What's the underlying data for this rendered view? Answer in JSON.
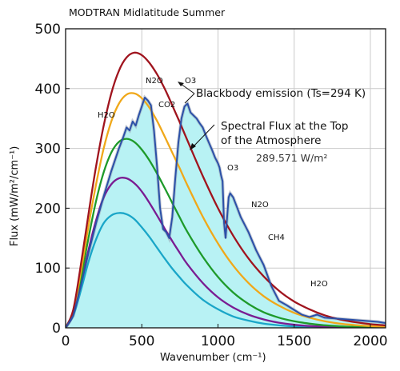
{
  "chart_data": {
    "type": "line",
    "title": "MODTRAN Midlatitude Summer",
    "xlabel": "Wavenumber (cm⁻¹)",
    "ylabel": "Flux (mW/m²/cm⁻¹)",
    "xlim": [
      0,
      2100
    ],
    "ylim": [
      0,
      500
    ],
    "xticks": [
      0,
      500,
      1000,
      1500,
      2000
    ],
    "yticks": [
      0,
      100,
      200,
      300,
      400,
      500
    ],
    "grid": true,
    "colors": {
      "bb294": "#a0141e",
      "bb270": "#f0a81a",
      "bb250": "#1e9a2a",
      "bb230": "#7a1c92",
      "bb210": "#1aa6c8",
      "spectrum": "#2b50a8",
      "fill": "#b8f2f4"
    },
    "series": [
      {
        "key": "bb294",
        "x": [
          0,
          50,
          100,
          150,
          200,
          250,
          300,
          350,
          400,
          450,
          500,
          550,
          600,
          650,
          700,
          750,
          800,
          900,
          1000,
          1100,
          1200,
          1300,
          1400,
          1500,
          1600,
          1700,
          1800,
          1900,
          2000,
          2100
        ],
        "values": [
          0,
          30,
          105,
          190,
          270,
          338,
          392,
          430,
          452,
          460,
          456,
          443,
          424,
          400,
          372,
          343,
          313,
          254,
          200,
          154,
          116,
          86,
          62,
          44,
          31,
          21,
          14,
          9.5,
          6.2,
          4.0
        ]
      },
      {
        "key": "bb270",
        "x": [
          0,
          50,
          100,
          150,
          200,
          250,
          300,
          350,
          400,
          450,
          500,
          550,
          600,
          650,
          700,
          750,
          800,
          900,
          1000,
          1100,
          1200,
          1300,
          1400,
          1500,
          1600,
          1700,
          1800,
          1900,
          2000,
          2100
        ],
        "values": [
          0,
          27,
          93,
          170,
          240,
          300,
          345,
          375,
          390,
          392,
          384,
          368,
          346,
          320,
          293,
          266,
          238,
          186,
          141,
          104,
          75,
          53,
          37,
          25,
          17,
          11,
          7,
          4.5,
          2.9,
          1.8
        ]
      },
      {
        "key": "bb250",
        "x": [
          0,
          50,
          100,
          150,
          200,
          250,
          300,
          350,
          400,
          450,
          500,
          550,
          600,
          650,
          700,
          750,
          800,
          900,
          1000,
          1100,
          1200,
          1300,
          1400,
          1500,
          1600,
          1700,
          1800,
          1900,
          2000,
          2100
        ],
        "values": [
          0,
          25,
          82,
          150,
          212,
          260,
          293,
          311,
          316,
          311,
          298,
          280,
          258,
          234,
          209,
          184,
          160,
          119,
          85,
          59,
          40,
          26,
          17,
          11,
          7,
          4.3,
          2.6,
          1.6,
          1.0,
          0.6
        ]
      },
      {
        "key": "bb230",
        "x": [
          0,
          50,
          100,
          150,
          200,
          250,
          300,
          350,
          400,
          450,
          500,
          550,
          600,
          650,
          700,
          750,
          800,
          900,
          1000,
          1100,
          1200,
          1300,
          1400,
          1500,
          1600,
          1700,
          1800,
          1900,
          2000,
          2100
        ],
        "values": [
          0,
          22,
          72,
          130,
          180,
          218,
          240,
          250,
          250,
          242,
          228,
          209,
          188,
          166,
          145,
          125,
          106,
          75,
          51,
          34,
          22,
          14,
          8.5,
          5.2,
          3.1,
          1.8,
          1.1,
          0.6,
          0.4,
          0.2
        ]
      },
      {
        "key": "bb210",
        "x": [
          0,
          50,
          100,
          150,
          200,
          250,
          300,
          350,
          400,
          450,
          500,
          550,
          600,
          650,
          700,
          750,
          800,
          900,
          1000,
          1100,
          1200,
          1300,
          1400,
          1500,
          1600,
          1700,
          1800,
          1900,
          2000,
          2100
        ],
        "values": [
          0,
          20,
          62,
          110,
          148,
          175,
          188,
          192,
          190,
          182,
          168,
          152,
          134,
          116,
          99,
          84,
          70,
          47,
          31,
          19,
          12,
          7,
          4.2,
          2.4,
          1.4,
          0.8,
          0.4,
          0.2,
          0.1,
          0.05
        ]
      },
      {
        "key": "spectrum",
        "x": [
          0,
          50,
          100,
          150,
          200,
          250,
          300,
          350,
          380,
          400,
          420,
          440,
          460,
          480,
          500,
          520,
          540,
          560,
          580,
          600,
          620,
          640,
          660,
          680,
          700,
          720,
          740,
          760,
          780,
          800,
          820,
          840,
          860,
          880,
          900,
          920,
          940,
          960,
          980,
          1000,
          1010,
          1020,
          1030,
          1040,
          1050,
          1060,
          1070,
          1080,
          1100,
          1120,
          1150,
          1200,
          1250,
          1300,
          1350,
          1400,
          1450,
          1500,
          1550,
          1600,
          1650,
          1700,
          1750,
          1800,
          1900,
          2000,
          2050,
          2100
        ],
        "values": [
          0,
          20,
          70,
          125,
          175,
          220,
          262,
          300,
          320,
          335,
          330,
          345,
          338,
          355,
          370,
          385,
          380,
          372,
          330,
          270,
          200,
          165,
          160,
          150,
          185,
          250,
          310,
          350,
          370,
          375,
          360,
          355,
          350,
          342,
          335,
          322,
          310,
          298,
          285,
          275,
          268,
          255,
          245,
          175,
          150,
          185,
          218,
          225,
          218,
          205,
          185,
          160,
          130,
          105,
          70,
          45,
          38,
          30,
          22,
          18,
          22,
          17,
          16,
          15,
          13,
          11,
          10,
          8
        ]
      }
    ],
    "annotations": {
      "gas_h2o_left": "H2O",
      "gas_n2o_top": "N2O",
      "gas_o3_top": "O3",
      "gas_co2": "CO2",
      "gas_o3_mid": "O3",
      "gas_n2o_right": "N2O",
      "gas_ch4": "CH4",
      "gas_h2o_right": "H2O",
      "blackbody_label": "Blackbody emission (Ts=294 K)",
      "spectral_line1": "Spectral Flux at the Top",
      "spectral_line2": "of the Atmosphere",
      "total_flux": "289.571 W/m²"
    }
  }
}
